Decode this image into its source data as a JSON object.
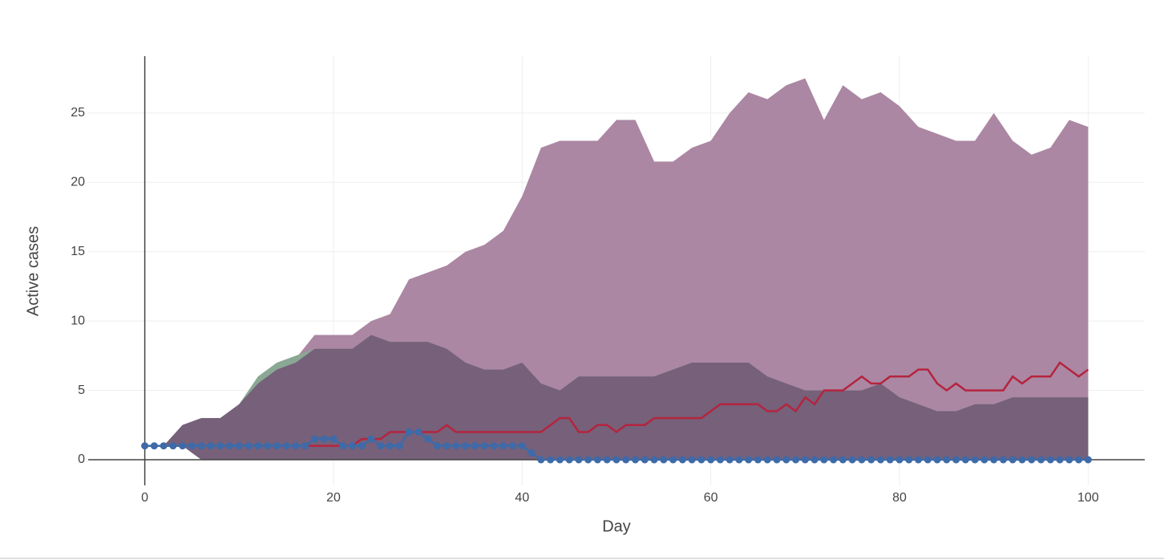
{
  "chart_data": {
    "type": "area",
    "xlabel": "Day",
    "ylabel": "Active cases",
    "xlim": [
      -6,
      106
    ],
    "ylim": [
      -1.85,
      29.1
    ],
    "xticks": [
      0,
      20,
      40,
      60,
      80,
      100
    ],
    "yticks": [
      0,
      5,
      10,
      15,
      20,
      25
    ],
    "grid": true,
    "bands": [
      {
        "color": "#ab87a3",
        "x": [
          0,
          2,
          4,
          6,
          8,
          10,
          12,
          14,
          16,
          18,
          20,
          22,
          24,
          26,
          28,
          30,
          32,
          34,
          36,
          38,
          40,
          42,
          44,
          46,
          48,
          50,
          52,
          54,
          56,
          58,
          60,
          62,
          64,
          66,
          68,
          70,
          72,
          74,
          76,
          78,
          80,
          82,
          84,
          86,
          88,
          90,
          92,
          94,
          96,
          98,
          100
        ],
        "upper": [
          1,
          1,
          2.5,
          3,
          3,
          4,
          5.5,
          6.5,
          7.3,
          9,
          9,
          9,
          10,
          10.5,
          13,
          13.5,
          14,
          15,
          15.5,
          16.5,
          19,
          22.5,
          23,
          23,
          23,
          24.5,
          24.5,
          21.5,
          21.5,
          22.5,
          23,
          25,
          26.5,
          26,
          27,
          27.5,
          24.5,
          27,
          26,
          26.5,
          25.5,
          24,
          23.5,
          23,
          23,
          25,
          23,
          22,
          22.5,
          24.5,
          24
        ],
        "lower": [
          1,
          1,
          1,
          0.5,
          0,
          0,
          0,
          0,
          0,
          0,
          0,
          0,
          0,
          0,
          0,
          0,
          0,
          0,
          0,
          0,
          0,
          0,
          0,
          0,
          0,
          0,
          0,
          0,
          0,
          0,
          0,
          0,
          0,
          0,
          0,
          0,
          0,
          0,
          0,
          0,
          0,
          0,
          0,
          0,
          0,
          0,
          0,
          0,
          0,
          0,
          0
        ]
      },
      {
        "color": "#8aa894",
        "x": [
          0,
          2,
          4,
          6,
          8,
          10,
          12,
          14,
          16,
          18,
          20,
          22,
          24,
          26,
          28,
          30,
          32,
          34,
          36,
          38,
          40,
          42,
          44,
          46,
          48,
          50,
          52,
          54,
          56,
          58,
          60,
          62,
          64,
          66,
          68,
          70,
          72,
          74,
          76,
          78,
          80,
          82,
          84,
          86,
          88,
          90,
          92,
          94,
          96,
          98,
          100
        ],
        "upper": [
          1,
          1,
          2.5,
          3,
          3,
          4,
          6,
          7,
          7.5,
          8,
          8,
          8,
          9,
          8.5,
          8.5,
          8.5,
          8,
          7,
          6.5,
          6.5,
          7,
          5.5,
          5,
          6,
          6,
          6,
          6,
          6,
          6.5,
          7,
          7,
          7,
          7,
          6,
          5.5,
          5,
          5,
          5,
          5,
          5.5,
          4.5,
          4,
          3.5,
          3.5,
          4,
          4,
          4.5,
          4.5,
          4.5,
          4.5,
          4.5
        ],
        "lower": [
          1,
          1,
          1,
          0,
          0,
          0,
          0,
          0,
          0,
          0,
          0,
          0,
          0,
          0,
          0,
          0,
          0,
          0,
          0,
          0,
          0,
          0,
          0,
          0,
          0,
          0,
          0,
          0,
          0,
          0,
          0,
          0,
          0,
          0,
          0,
          0,
          0,
          0,
          0,
          0,
          0,
          0,
          0,
          0,
          0,
          0,
          0,
          0,
          0,
          0,
          0
        ]
      },
      {
        "color": "#76607a",
        "x": [
          0,
          2,
          4,
          6,
          8,
          10,
          12,
          14,
          16,
          18,
          20,
          22,
          24,
          26,
          28,
          30,
          32,
          34,
          36,
          38,
          40,
          42,
          44,
          46,
          48,
          50,
          52,
          54,
          56,
          58,
          60,
          62,
          64,
          66,
          68,
          70,
          72,
          74,
          76,
          78,
          80,
          82,
          84,
          86,
          88,
          90,
          92,
          94,
          96,
          98,
          100
        ],
        "upper": [
          1,
          1,
          2.5,
          3,
          3,
          4,
          5.5,
          6.5,
          7,
          8,
          8,
          8,
          9,
          8.5,
          8.5,
          8.5,
          8,
          7,
          6.5,
          6.5,
          7,
          5.5,
          5,
          6,
          6,
          6,
          6,
          6,
          6.5,
          7,
          7,
          7,
          7,
          6,
          5.5,
          5,
          5,
          5,
          5,
          5.5,
          4.5,
          4,
          3.5,
          3.5,
          4,
          4,
          4.5,
          4.5,
          4.5,
          4.5,
          4.5
        ],
        "lower": [
          1,
          1,
          1,
          0,
          0,
          0,
          0,
          0,
          0,
          0,
          0,
          0,
          0,
          0,
          0,
          0,
          0,
          0,
          0,
          0,
          0,
          0,
          0,
          0,
          0,
          0,
          0,
          0,
          0,
          0,
          0,
          0,
          0,
          0,
          0,
          0,
          0,
          0,
          0,
          0,
          0,
          0,
          0,
          0,
          0,
          0,
          0,
          0,
          0,
          0,
          0
        ]
      }
    ],
    "series": [
      {
        "color": "#b5243e",
        "markers": false,
        "x": [
          0,
          1,
          2,
          3,
          4,
          5,
          6,
          7,
          8,
          9,
          10,
          11,
          12,
          13,
          14,
          15,
          16,
          17,
          18,
          19,
          20,
          21,
          22,
          23,
          24,
          25,
          26,
          27,
          28,
          29,
          30,
          31,
          32,
          33,
          34,
          35,
          36,
          37,
          38,
          39,
          40,
          41,
          42,
          43,
          44,
          45,
          46,
          47,
          48,
          49,
          50,
          51,
          52,
          53,
          54,
          55,
          56,
          57,
          58,
          59,
          60,
          61,
          62,
          63,
          64,
          65,
          66,
          67,
          68,
          69,
          70,
          71,
          72,
          73,
          74,
          75,
          76,
          77,
          78,
          79,
          80,
          81,
          82,
          83,
          84,
          85,
          86,
          87,
          88,
          89,
          90,
          91,
          92,
          93,
          94,
          95,
          96,
          97,
          98,
          99,
          100
        ],
        "values": [
          1,
          1,
          1,
          1,
          1,
          1,
          1,
          1,
          1,
          1,
          1,
          1,
          1,
          1,
          1,
          1,
          1,
          1,
          1,
          1,
          1,
          1,
          1,
          1.5,
          1.5,
          1.5,
          2,
          2,
          2,
          2,
          2,
          2,
          2.5,
          2,
          2,
          2,
          2,
          2,
          2,
          2,
          2,
          2,
          2,
          2.5,
          3,
          3,
          2,
          2,
          2.5,
          2.5,
          2,
          2.5,
          2.5,
          2.5,
          3,
          3,
          3,
          3,
          3,
          3,
          3.5,
          4,
          4,
          4,
          4,
          4,
          3.5,
          3.5,
          4,
          3.5,
          4.5,
          4,
          5,
          5,
          5,
          5.5,
          6,
          5.5,
          5.5,
          6,
          6,
          6,
          6.5,
          6.5,
          5.5,
          5,
          5.5,
          5,
          5,
          5,
          5,
          5,
          6,
          5.5,
          6,
          6,
          6,
          7,
          6.5,
          6,
          6.5
        ]
      },
      {
        "color": "#3f6aa8",
        "markers": true,
        "x": [
          0,
          1,
          2,
          3,
          4,
          5,
          6,
          7,
          8,
          9,
          10,
          11,
          12,
          13,
          14,
          15,
          16,
          17,
          18,
          19,
          20,
          21,
          22,
          23,
          24,
          25,
          26,
          27,
          28,
          29,
          30,
          31,
          32,
          33,
          34,
          35,
          36,
          37,
          38,
          39,
          40,
          41,
          42,
          43,
          44,
          45,
          46,
          47,
          48,
          49,
          50,
          51,
          52,
          53,
          54,
          55,
          56,
          57,
          58,
          59,
          60,
          61,
          62,
          63,
          64,
          65,
          66,
          67,
          68,
          69,
          70,
          71,
          72,
          73,
          74,
          75,
          76,
          77,
          78,
          79,
          80,
          81,
          82,
          83,
          84,
          85,
          86,
          87,
          88,
          89,
          90,
          91,
          92,
          93,
          94,
          95,
          96,
          97,
          98,
          99,
          100
        ],
        "values": [
          1,
          1,
          1,
          1,
          1,
          1,
          1,
          1,
          1,
          1,
          1,
          1,
          1,
          1,
          1,
          1,
          1,
          1,
          1.5,
          1.5,
          1.5,
          1,
          1,
          1,
          1.5,
          1,
          1,
          1,
          2,
          2,
          1.5,
          1,
          1,
          1,
          1,
          1,
          1,
          1,
          1,
          1,
          1,
          0.5,
          0,
          0,
          0,
          0,
          0,
          0,
          0,
          0,
          0,
          0,
          0,
          0,
          0,
          0,
          0,
          0,
          0,
          0,
          0,
          0,
          0,
          0,
          0,
          0,
          0,
          0,
          0,
          0,
          0,
          0,
          0,
          0,
          0,
          0,
          0,
          0,
          0,
          0,
          0,
          0,
          0,
          0,
          0,
          0,
          0,
          0,
          0,
          0,
          0,
          0,
          0,
          0,
          0,
          0,
          0,
          0,
          0,
          0,
          0
        ]
      }
    ]
  }
}
